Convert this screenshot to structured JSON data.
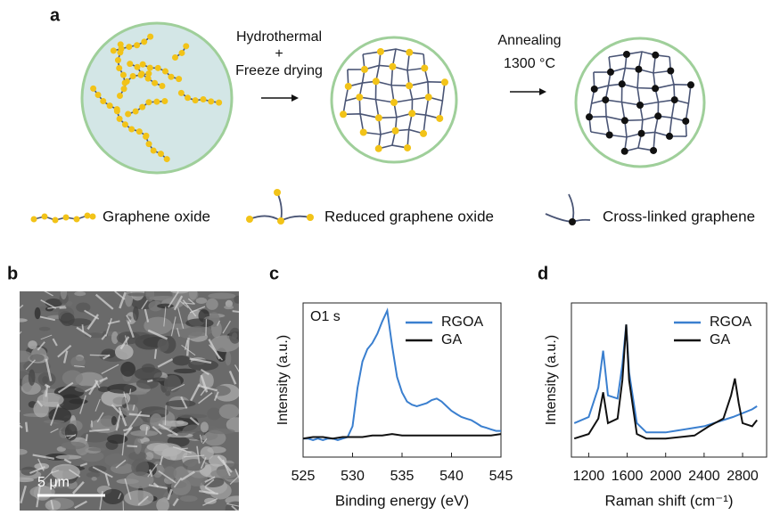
{
  "panel_labels": [
    "a",
    "b",
    "c",
    "d"
  ],
  "schematic": {
    "step1": [
      "Hydrothermal",
      "+",
      "Freeze drying"
    ],
    "step2": [
      "Annealing",
      "1300 °C"
    ],
    "legend": [
      "Graphene oxide",
      "Reduced graphene oxide",
      "Cross-linked graphene"
    ]
  },
  "sem": {
    "scale_bar": "5 μm"
  },
  "chart_data": [
    {
      "type": "line",
      "xlabel": "Binding energy (eV)",
      "ylabel": "Intensity (a.u.)",
      "annotation": "O1 s",
      "xlim": [
        525,
        545
      ],
      "ylim": [
        0,
        100
      ],
      "xticks": [
        525,
        530,
        535,
        540,
        545
      ],
      "series": [
        {
          "name": "RGOA",
          "color": "#3a7fcf",
          "x": [
            525,
            525.5,
            526,
            526.5,
            527,
            527.5,
            528,
            528.5,
            529,
            529.5,
            530,
            530.5,
            531,
            531.5,
            532,
            532.5,
            533,
            533.5,
            534,
            534.5,
            535,
            535.5,
            536,
            536.5,
            537,
            537.5,
            538,
            538.5,
            539,
            539.5,
            540,
            540.5,
            541,
            541.5,
            542,
            542.5,
            543,
            543.5,
            544,
            544.5,
            545
          ],
          "values": [
            12,
            12,
            11,
            12,
            11,
            12,
            12,
            11,
            12,
            13,
            20,
            45,
            62,
            70,
            74,
            80,
            88,
            95,
            72,
            52,
            42,
            36,
            34,
            33,
            34,
            35,
            37,
            38,
            36,
            33,
            30,
            28,
            26,
            25,
            24,
            22,
            20,
            19,
            18,
            17,
            17
          ]
        },
        {
          "name": "GA",
          "color": "#111111",
          "x": [
            525,
            526,
            527,
            528,
            529,
            530,
            531,
            532,
            533,
            534,
            535,
            536,
            537,
            538,
            539,
            540,
            541,
            542,
            543,
            544,
            545
          ],
          "values": [
            12,
            13,
            13,
            12,
            13,
            13,
            13,
            14,
            14,
            15,
            14,
            14,
            14,
            14,
            14,
            14,
            14,
            14,
            14,
            14,
            15
          ]
        }
      ]
    },
    {
      "type": "line",
      "xlabel": "Raman shift (cm⁻¹)",
      "ylabel": "Intensity (a.u.)",
      "xlim": [
        1020,
        3050
      ],
      "ylim": [
        0,
        100
      ],
      "xticks": [
        1200,
        1600,
        2000,
        2400,
        2800
      ],
      "series": [
        {
          "name": "RGOA",
          "color": "#3a7fcf",
          "x": [
            1050,
            1200,
            1300,
            1350,
            1400,
            1500,
            1550,
            1590,
            1620,
            1700,
            1800,
            2000,
            2400,
            2700,
            2900,
            2950
          ],
          "values": [
            22,
            26,
            45,
            69,
            40,
            38,
            60,
            86,
            55,
            22,
            16,
            16,
            20,
            26,
            31,
            33
          ]
        },
        {
          "name": "GA",
          "color": "#111111",
          "x": [
            1050,
            1200,
            1300,
            1350,
            1400,
            1500,
            1550,
            1590,
            1620,
            1700,
            1800,
            2000,
            2300,
            2450,
            2600,
            2680,
            2720,
            2760,
            2800,
            2900,
            2950
          ],
          "values": [
            12,
            15,
            25,
            42,
            22,
            25,
            50,
            86,
            50,
            15,
            12,
            12,
            14,
            20,
            25,
            40,
            51,
            35,
            22,
            20,
            24
          ]
        }
      ]
    }
  ]
}
